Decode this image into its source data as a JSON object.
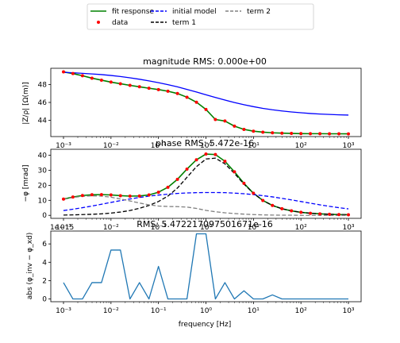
{
  "legend": {
    "items": [
      {
        "label": "fit response",
        "color": "#008000",
        "style": "solid",
        "marker": "line"
      },
      {
        "label": "data",
        "color": "#ff0000",
        "style": "none",
        "marker": "dot"
      },
      {
        "label": "initial model",
        "color": "#0000ff",
        "style": "dashed",
        "marker": "line"
      },
      {
        "label": "term 1",
        "color": "#000000",
        "style": "dashed",
        "marker": "line"
      },
      {
        "label": "term 2",
        "color": "#808080",
        "style": "dashed",
        "marker": "line"
      }
    ]
  },
  "chart_data": [
    {
      "type": "line",
      "title": "magnitude RMS: 0.000e+00",
      "xlabel": "",
      "ylabel": "|Z/ρ| [Ω(m)]",
      "xscale": "log",
      "xlim": [
        0.001,
        1000
      ],
      "ylim": [
        42.2,
        49.8
      ],
      "yticks": [
        44,
        46,
        48
      ],
      "xtick_labels": [
        "10⁻³",
        "10⁻²",
        "10⁻¹",
        "10⁰",
        "10¹",
        "10²",
        "10³"
      ],
      "x": [
        0.001,
        0.00158,
        0.00251,
        0.00398,
        0.00631,
        0.01,
        0.0158,
        0.0251,
        0.0398,
        0.0631,
        0.1,
        0.158,
        0.251,
        0.398,
        0.631,
        1,
        1.58,
        2.51,
        3.98,
        6.31,
        10,
        15.8,
        25.1,
        39.8,
        63.1,
        100,
        158,
        251,
        398,
        631,
        1000
      ],
      "series": [
        {
          "name": "data",
          "color": "#ff0000",
          "marker": "dot",
          "values": [
            49.4,
            49.21,
            48.97,
            48.7,
            48.48,
            48.26,
            48.08,
            47.9,
            47.74,
            47.58,
            47.43,
            47.25,
            46.99,
            46.58,
            46.02,
            45.22,
            44.1,
            43.93,
            43.36,
            43.0,
            42.8,
            42.69,
            42.62,
            42.58,
            42.55,
            42.53,
            42.52,
            42.52,
            42.51,
            42.51,
            42.5
          ]
        },
        {
          "name": "fit response",
          "color": "#008000",
          "style": "solid",
          "values": [
            49.4,
            49.21,
            48.97,
            48.7,
            48.48,
            48.26,
            48.08,
            47.9,
            47.74,
            47.58,
            47.43,
            47.25,
            46.99,
            46.58,
            46.02,
            45.22,
            44.1,
            43.93,
            43.36,
            43.0,
            42.8,
            42.69,
            42.62,
            42.58,
            42.55,
            42.53,
            42.52,
            42.52,
            42.51,
            42.51,
            42.5
          ]
        },
        {
          "name": "initial model",
          "color": "#0000ff",
          "style": "solid",
          "values": [
            49.35,
            49.3,
            49.24,
            49.17,
            49.1,
            49.0,
            48.88,
            48.74,
            48.58,
            48.4,
            48.2,
            47.98,
            47.73,
            47.45,
            47.16,
            46.85,
            46.55,
            46.26,
            45.99,
            45.75,
            45.53,
            45.34,
            45.18,
            45.05,
            44.94,
            44.85,
            44.77,
            44.71,
            44.66,
            44.62,
            44.59
          ]
        }
      ]
    },
    {
      "type": "line",
      "title": "phase RMS: 5.472e-16",
      "xlabel": "",
      "ylabel": "−φ [mrad]",
      "xscale": "log",
      "xlim": [
        0.001,
        1000
      ],
      "ylim": [
        -2,
        44
      ],
      "yticks": [
        0,
        10,
        20,
        30,
        40
      ],
      "xtick_labels": [
        "10⁻³",
        "10⁻²",
        "10⁻¹",
        "10⁰",
        "10¹",
        "10²",
        "10³"
      ],
      "x": [
        0.001,
        0.00158,
        0.00251,
        0.00398,
        0.00631,
        0.01,
        0.0158,
        0.0251,
        0.0398,
        0.0631,
        0.1,
        0.158,
        0.251,
        0.398,
        0.631,
        1,
        1.58,
        2.51,
        3.98,
        6.31,
        10,
        15.8,
        25.1,
        39.8,
        63.1,
        100,
        158,
        251,
        398,
        631,
        1000
      ],
      "series": [
        {
          "name": "data",
          "color": "#ff0000",
          "marker": "dot",
          "values": [
            10.8,
            12.2,
            13.2,
            13.7,
            13.8,
            13.6,
            13.1,
            12.8,
            12.9,
            13.6,
            15.4,
            18.7,
            24.0,
            30.8,
            37.0,
            40.8,
            40.5,
            36.0,
            29.0,
            21.3,
            14.7,
            9.9,
            6.6,
            4.4,
            3.0,
            2.0,
            1.4,
            1.0,
            0.7,
            0.5,
            0.4
          ]
        },
        {
          "name": "fit response",
          "color": "#008000",
          "style": "solid",
          "values": [
            10.8,
            12.2,
            13.2,
            13.7,
            13.8,
            13.6,
            13.1,
            12.8,
            12.9,
            13.6,
            15.4,
            18.7,
            24.0,
            30.8,
            37.0,
            40.8,
            40.5,
            36.0,
            29.0,
            21.3,
            14.7,
            9.9,
            6.6,
            4.4,
            3.0,
            2.0,
            1.4,
            1.0,
            0.7,
            0.5,
            0.4
          ]
        },
        {
          "name": "initial model",
          "color": "#0000ff",
          "style": "dashed",
          "values": [
            3.2,
            4.1,
            5.1,
            6.2,
            7.4,
            8.6,
            9.8,
            10.9,
            11.9,
            12.8,
            13.5,
            14.1,
            14.6,
            14.9,
            15.1,
            15.2,
            15.2,
            15.1,
            14.8,
            14.4,
            13.8,
            13.1,
            12.3,
            11.3,
            10.3,
            9.2,
            8.1,
            7.0,
            6.0,
            5.1,
            4.3
          ]
        },
        {
          "name": "term 1",
          "color": "#000000",
          "style": "dashed",
          "values": [
            0.2,
            0.3,
            0.5,
            0.7,
            1.0,
            1.5,
            2.2,
            3.2,
            4.7,
            6.6,
            9.2,
            12.8,
            18.2,
            25.3,
            32.4,
            37.5,
            38.1,
            34.3,
            27.9,
            20.8,
            14.7,
            9.9,
            6.6,
            4.4,
            3.0,
            2.0,
            1.4,
            1.0,
            0.7,
            0.5,
            0.4
          ]
        },
        {
          "name": "term 2",
          "color": "#808080",
          "style": "dashed",
          "values": [
            10.6,
            11.9,
            12.7,
            13.0,
            12.8,
            12.1,
            10.9,
            9.6,
            8.2,
            7.0,
            6.2,
            5.9,
            5.8,
            5.5,
            4.6,
            3.3,
            2.4,
            1.7,
            1.2,
            0.8,
            0.5,
            0.3,
            0.2,
            0.1,
            0.1,
            0.0,
            0.0,
            0.0,
            0.0,
            0.0,
            0.0
          ]
        }
      ]
    },
    {
      "type": "line",
      "title": "RMS: 5.472217097501671e-16",
      "scale_label": "1e−15",
      "xlabel": "frequency [Hz]",
      "ylabel": "abs (φ_inv − φ_xd)",
      "xscale": "log",
      "xlim": [
        0.001,
        1000
      ],
      "ylim": [
        -0.3,
        7.4
      ],
      "yticks": [
        0,
        2,
        4,
        6
      ],
      "xtick_labels": [
        "10⁻³",
        "10⁻²",
        "10⁻¹",
        "10⁰",
        "10¹",
        "10²",
        "10³"
      ],
      "x": [
        0.001,
        0.00158,
        0.00251,
        0.00398,
        0.00631,
        0.01,
        0.0158,
        0.0251,
        0.0398,
        0.0631,
        0.1,
        0.158,
        0.251,
        0.398,
        0.631,
        1,
        1.58,
        2.51,
        3.98,
        6.31,
        10,
        15.8,
        25.1,
        39.8,
        63.1,
        100,
        158,
        251,
        398,
        631,
        1000
      ],
      "series": [
        {
          "name": "residual",
          "color": "#1f77b4",
          "style": "solid",
          "values": [
            1.78,
            0.0,
            0.0,
            1.78,
            1.78,
            5.33,
            5.33,
            0.0,
            1.78,
            0.0,
            3.55,
            0.0,
            0.0,
            0.0,
            7.1,
            7.1,
            0.0,
            1.78,
            0.0,
            0.89,
            0.0,
            0.0,
            0.44,
            0.0,
            0.0,
            0.0,
            0.0,
            0.0,
            0.0,
            0.0,
            0.0
          ]
        }
      ]
    }
  ]
}
